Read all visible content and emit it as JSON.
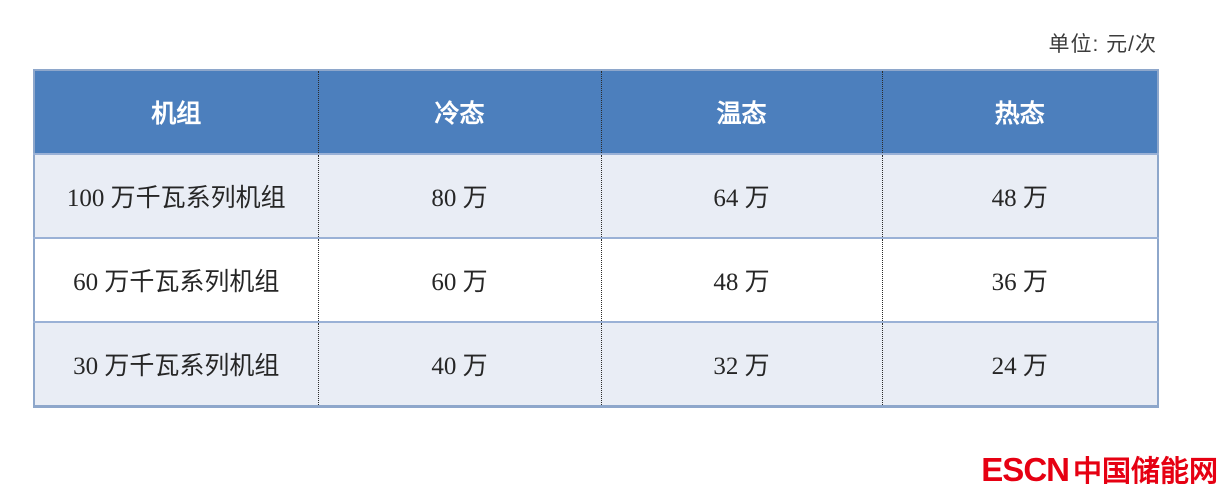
{
  "unit_label": "单位: 元/次",
  "table": {
    "headers": [
      "机组",
      "冷态",
      "温态",
      "热态"
    ],
    "rows": [
      {
        "cells": [
          "100 万千瓦系列机组",
          "80 万",
          "64 万",
          "48 万"
        ]
      },
      {
        "cells": [
          "60 万千瓦系列机组",
          "60 万",
          "48 万",
          "36 万"
        ]
      },
      {
        "cells": [
          "30 万千瓦系列机组",
          "40 万",
          "32 万",
          "24 万"
        ]
      }
    ]
  },
  "logo": {
    "latin": "ESCN",
    "cjk": "中国储能网"
  },
  "colors": {
    "header_bg": "#4c7fbd",
    "header_text": "#ffffff",
    "row_shaded_bg": "#e9edf5",
    "row_plain_bg": "#ffffff",
    "outer_border": "#8ea7cb",
    "row_separator": "#9ab1d6",
    "column_dotted": "#2b2b2b",
    "cell_text": "#262626",
    "logo_red": "#e60012"
  }
}
